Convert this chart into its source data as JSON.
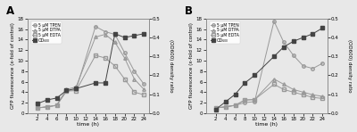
{
  "time_points_A": [
    2,
    4,
    6,
    8,
    10,
    14,
    16,
    18,
    20,
    22,
    24
  ],
  "TPEN_A": [
    1.0,
    1.2,
    1.5,
    4.2,
    4.5,
    16.5,
    15.5,
    15.0,
    11.5,
    8.0,
    5.5
  ],
  "DTPA_A": [
    1.0,
    1.2,
    1.5,
    4.5,
    5.0,
    14.5,
    15.0,
    13.5,
    10.5,
    6.5,
    4.5
  ],
  "EDTA_A": [
    1.0,
    1.2,
    1.5,
    4.2,
    4.3,
    11.0,
    10.5,
    9.0,
    6.5,
    4.0,
    3.5
  ],
  "OD600_A": [
    0.05,
    0.07,
    0.08,
    0.12,
    0.13,
    0.16,
    0.16,
    0.42,
    0.4,
    0.41,
    0.42
  ],
  "time_points_B": [
    2,
    4,
    6,
    8,
    10,
    14,
    16,
    18,
    20,
    22,
    24
  ],
  "TPEN_B": [
    1.0,
    1.2,
    1.5,
    2.0,
    2.2,
    17.5,
    13.5,
    11.0,
    9.0,
    8.5,
    9.5
  ],
  "DTPA_B": [
    1.0,
    1.2,
    1.5,
    2.5,
    2.6,
    6.5,
    5.5,
    4.5,
    4.0,
    3.5,
    3.2
  ],
  "EDTA_B": [
    1.0,
    1.2,
    1.5,
    2.5,
    2.6,
    5.5,
    4.5,
    4.0,
    3.5,
    3.0,
    2.8
  ],
  "OD600_B": [
    0.02,
    0.06,
    0.1,
    0.16,
    0.2,
    0.3,
    0.35,
    0.38,
    0.4,
    0.42,
    0.45
  ],
  "color_line": "#999999",
  "color_OD600": "#444444",
  "ylim_GFP": [
    0,
    18
  ],
  "ylim_OD": [
    0.0,
    0.5
  ],
  "xticks": [
    2,
    4,
    6,
    8,
    10,
    12,
    14,
    16,
    18,
    20,
    22,
    24
  ],
  "xticklabels": [
    "2",
    "4",
    "6",
    "8",
    "10",
    "12",
    "14",
    "16",
    "18",
    "20",
    "22",
    "24"
  ],
  "yticks_GFP": [
    0,
    2,
    4,
    6,
    8,
    10,
    12,
    14,
    16,
    18
  ],
  "yticks_OD": [
    0.0,
    0.1,
    0.2,
    0.3,
    0.4,
    0.5
  ],
  "xlabel": "time (h)",
  "ylabel_left": "GFP fluorescence (x-fold of control)",
  "ylabel_right": "(OD600) density ratio",
  "bg_color": "#e8e8e8",
  "fontsize": 4.5
}
